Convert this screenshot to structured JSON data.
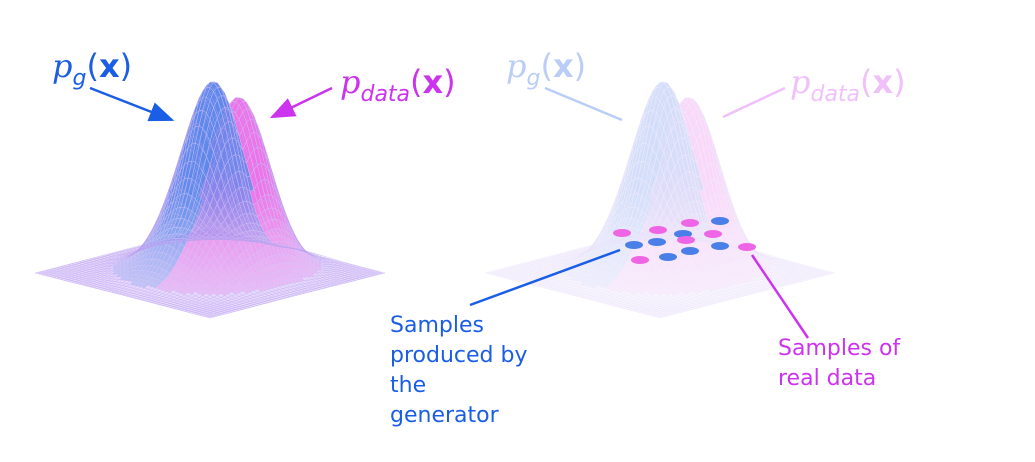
{
  "colors": {
    "generator": "#1a5ee6",
    "data": "#cc33ee",
    "generator_fill": "#4b7fe8",
    "data_fill": "#ee66e6",
    "surface_line": "#b59af0"
  },
  "left_panel": {
    "pg_label": {
      "p": "p",
      "sub": "g",
      "open": "(",
      "x": "x",
      "close": ")"
    },
    "pdata_label": {
      "p": "p",
      "sub": "data",
      "open": "(",
      "x": "x",
      "close": ")"
    }
  },
  "right_panel": {
    "pg_label": {
      "p": "p",
      "sub": "g",
      "open": "(",
      "x": "x",
      "close": ")"
    },
    "pdata_label": {
      "p": "p",
      "sub": "data",
      "open": "(",
      "x": "x",
      "close": ")"
    },
    "generator_samples_text": "Samples produced by the generator",
    "real_samples_text": "Samples of real data"
  }
}
